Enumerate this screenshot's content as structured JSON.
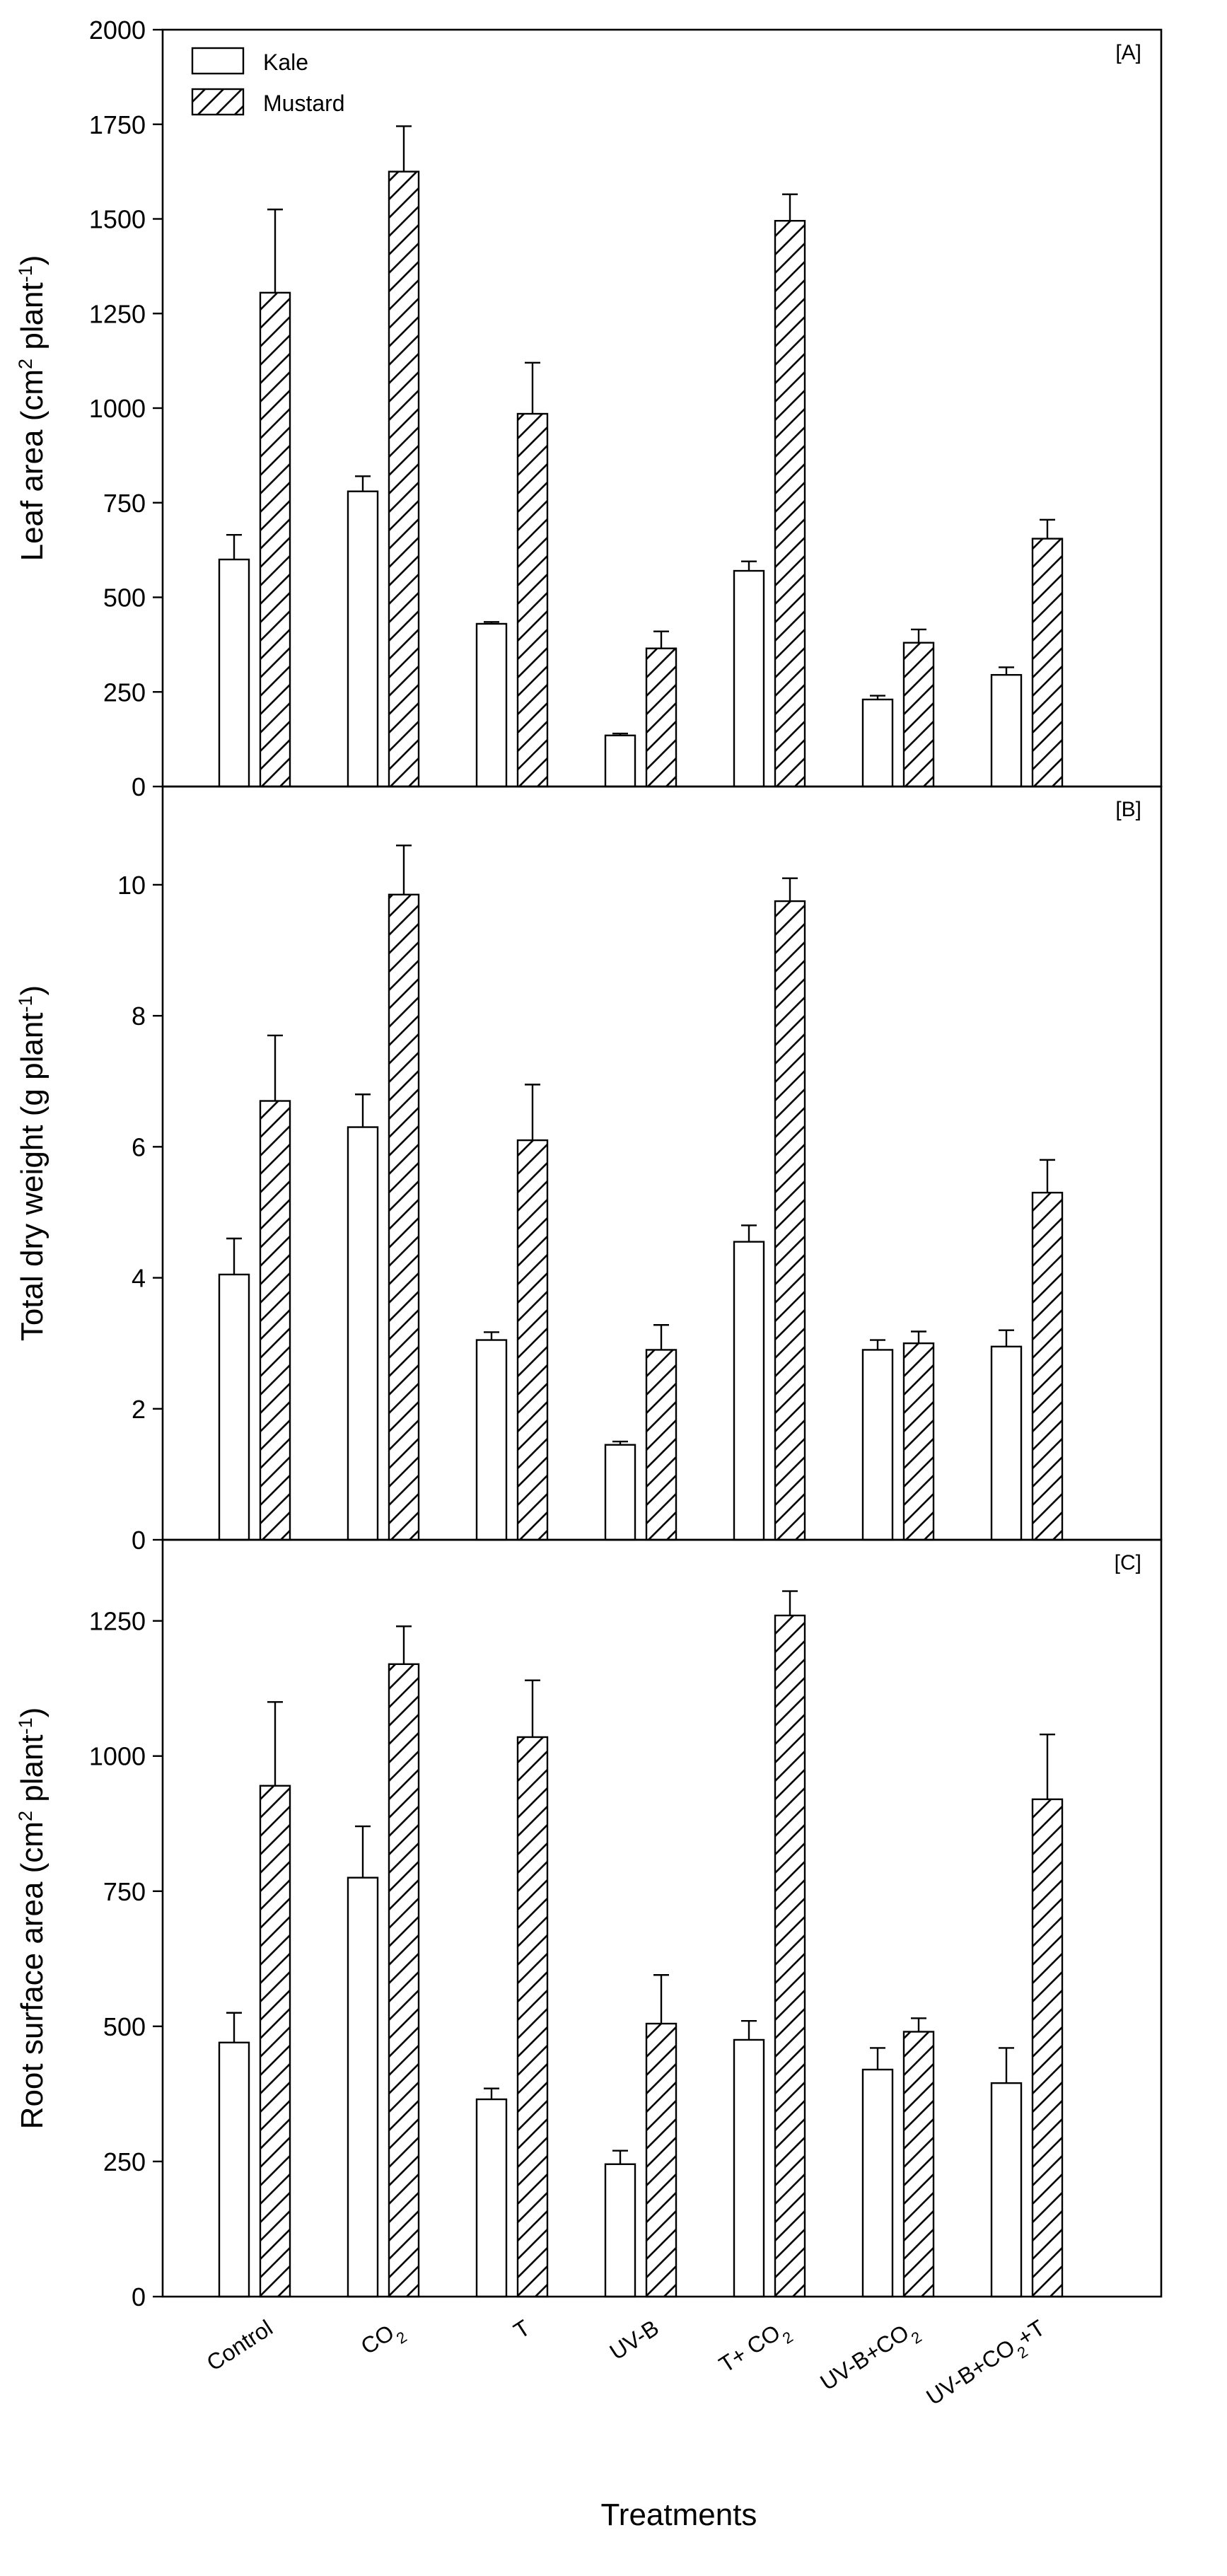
{
  "chart_data": {
    "type": "bar",
    "xlabel": "Treatments",
    "legend": {
      "position": "top-left",
      "entries": [
        {
          "name": "Kale",
          "pattern": "open"
        },
        {
          "name": "Mustard",
          "pattern": "hatched"
        }
      ]
    },
    "categories": [
      {
        "id": "control",
        "parts": [
          {
            "t": "Control"
          }
        ]
      },
      {
        "id": "co2",
        "parts": [
          {
            "t": "CO"
          },
          {
            "t": "2",
            "sub": true
          }
        ]
      },
      {
        "id": "t",
        "parts": [
          {
            "t": "T"
          }
        ]
      },
      {
        "id": "uvb",
        "parts": [
          {
            "t": "UV-B"
          }
        ]
      },
      {
        "id": "t-co2",
        "parts": [
          {
            "t": "T+ CO"
          },
          {
            "t": "2",
            "sub": true
          }
        ]
      },
      {
        "id": "uvb-co2",
        "parts": [
          {
            "t": "UV-B+CO"
          },
          {
            "t": "2",
            "sub": true
          }
        ]
      },
      {
        "id": "uvb-co2-t",
        "parts": [
          {
            "t": "UV-B+CO"
          },
          {
            "t": "2",
            "sub": true
          },
          {
            "t": "+T"
          }
        ]
      }
    ],
    "panels": [
      {
        "label": "[A]",
        "ylabel_parts": [
          {
            "t": "Leaf area (cm"
          },
          {
            "t": "2",
            "sup": true
          },
          {
            "t": " plant"
          },
          {
            "t": "-1",
            "sup": true
          },
          {
            "t": ")"
          }
        ],
        "ylim": [
          0,
          2000
        ],
        "yticks": [
          "0",
          "250",
          "500",
          "750",
          "1000",
          "1250",
          "1500",
          "1750",
          "2000"
        ],
        "series": [
          {
            "name": "Kale",
            "values": [
              600,
              780,
              430,
              135,
              570,
              230,
              295
            ],
            "errors": [
              65,
              40,
              5,
              5,
              25,
              10,
              20
            ]
          },
          {
            "name": "Mustard",
            "values": [
              1305,
              1625,
              985,
              365,
              1495,
              380,
              655
            ],
            "errors": [
              220,
              120,
              135,
              45,
              70,
              35,
              50
            ]
          }
        ]
      },
      {
        "label": "[B]",
        "ylabel_parts": [
          {
            "t": "Total dry weight (g plant"
          },
          {
            "t": "-1",
            "sup": true
          },
          {
            "t": ")"
          }
        ],
        "ylim": [
          0,
          11.5
        ],
        "yticks": [
          "0",
          "2",
          "4",
          "6",
          "8",
          "10"
        ],
        "series": [
          {
            "name": "Kale",
            "values": [
              4.05,
              6.3,
              3.05,
              1.45,
              4.55,
              2.9,
              2.95
            ],
            "errors": [
              0.55,
              0.5,
              0.12,
              0.05,
              0.25,
              0.15,
              0.25
            ]
          },
          {
            "name": "Mustard",
            "values": [
              6.7,
              9.85,
              6.1,
              2.9,
              9.75,
              3.0,
              5.3
            ],
            "errors": [
              1.0,
              0.75,
              0.85,
              0.38,
              0.35,
              0.18,
              0.5
            ]
          }
        ]
      },
      {
        "label": "[C]",
        "ylabel_parts": [
          {
            "t": "Root surface area (cm"
          },
          {
            "t": "2",
            "sup": true
          },
          {
            "t": " plant"
          },
          {
            "t": "-1",
            "sup": true
          },
          {
            "t": ")"
          }
        ],
        "ylim": [
          0,
          1400
        ],
        "yticks": [
          "0",
          "250",
          "500",
          "750",
          "1000",
          "1250"
        ],
        "series": [
          {
            "name": "Kale",
            "values": [
              470,
              775,
              365,
              245,
              475,
              420,
              395
            ],
            "errors": [
              55,
              95,
              20,
              25,
              35,
              40,
              65
            ]
          },
          {
            "name": "Mustard",
            "values": [
              945,
              1170,
              1035,
              505,
              1260,
              490,
              920
            ],
            "errors": [
              155,
              70,
              105,
              90,
              45,
              25,
              120
            ]
          }
        ]
      }
    ]
  }
}
